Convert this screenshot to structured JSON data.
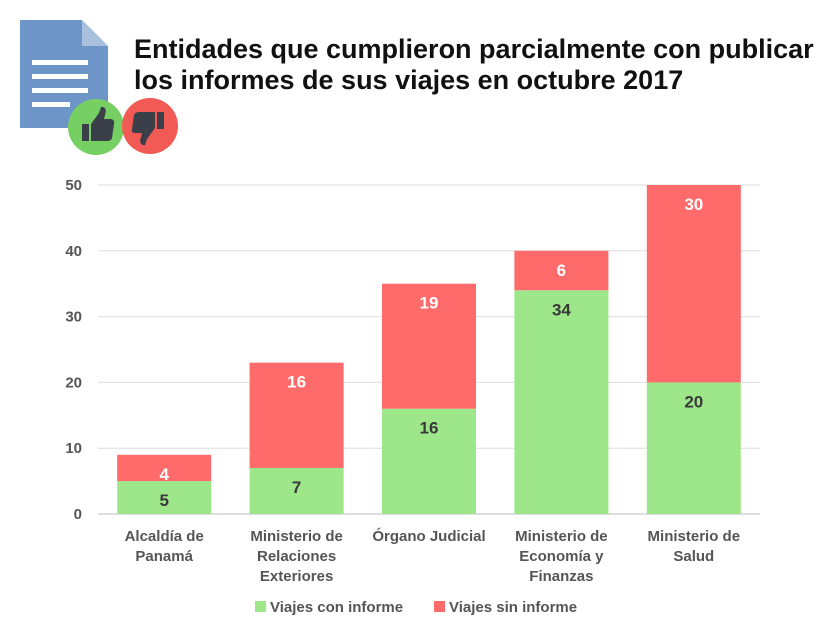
{
  "colors": {
    "with_report": "#9de68a",
    "without_report": "#fe6b6a",
    "grid": "#dedede",
    "label_dark": "#3a3a3a",
    "label_light": "#ffffff"
  },
  "icons": [
    "document-icon",
    "thumbs-up-icon",
    "thumbs-down-icon"
  ],
  "chart_data": {
    "type": "bar",
    "stacked": true,
    "title": "Entidades que cumplieron parcialmente con publicar los informes de sus viajes en octubre 2017",
    "xlabel": "",
    "ylabel": "",
    "ylim": [
      0,
      50
    ],
    "yticks": [
      0,
      10,
      20,
      30,
      40,
      50
    ],
    "grid": true,
    "legend_position": "bottom",
    "categories": [
      [
        "Alcaldía de",
        "Panamá"
      ],
      [
        "Ministerio de",
        "Relaciones",
        "Exteriores"
      ],
      [
        "Órgano Judicial"
      ],
      [
        "Ministerio de",
        "Economía y",
        "Finanzas"
      ],
      [
        "Ministerio de",
        "Salud"
      ]
    ],
    "series": [
      {
        "name": "Viajes con informe",
        "color": "#9de68a",
        "values": [
          5,
          7,
          16,
          34,
          20
        ]
      },
      {
        "name": "Viajes sin informe",
        "color": "#fe6b6a",
        "values": [
          4,
          16,
          19,
          6,
          30
        ]
      }
    ]
  }
}
